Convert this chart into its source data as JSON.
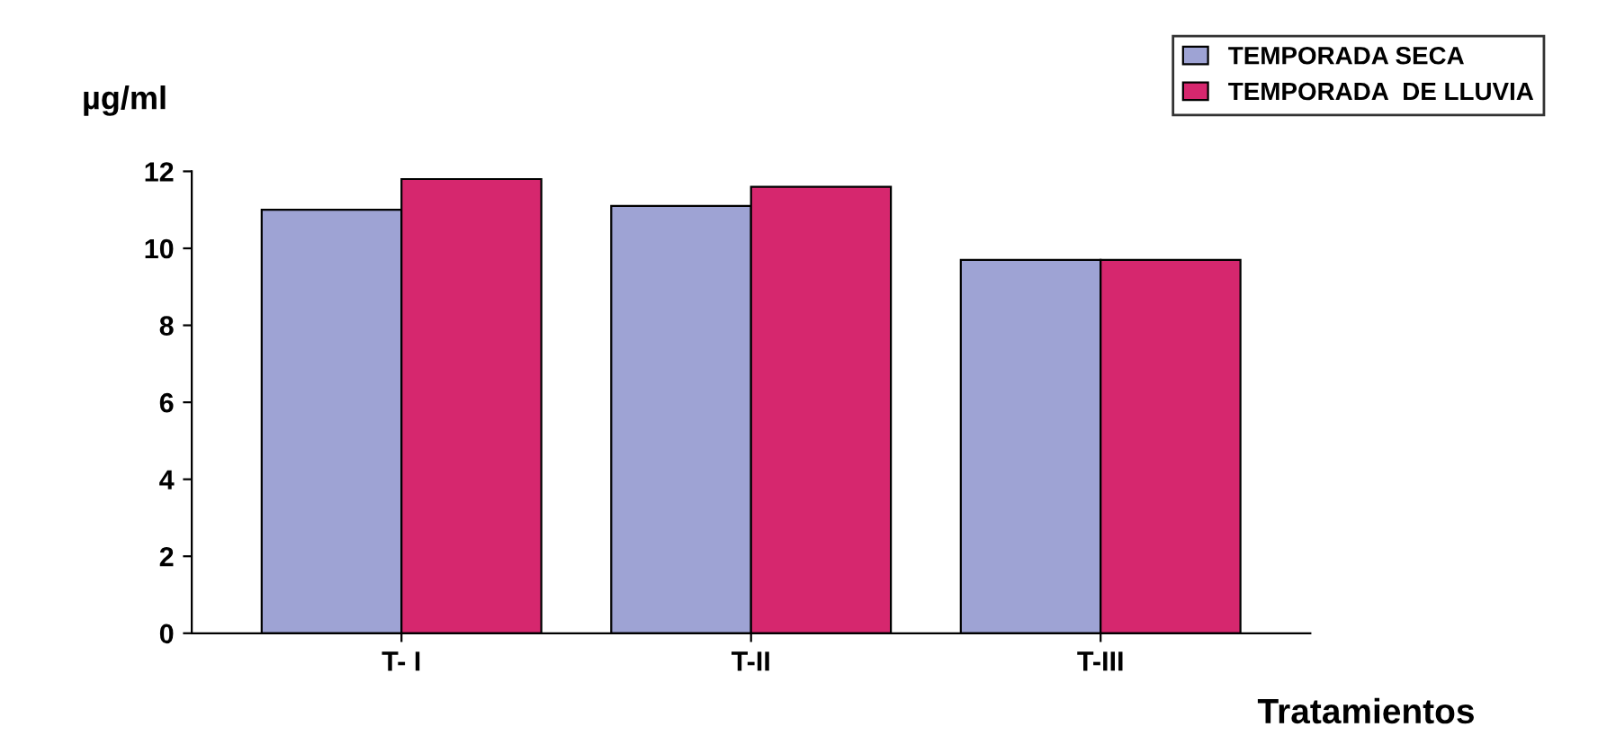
{
  "chart_data": {
    "type": "bar",
    "xlabel": "Tratamientos",
    "ylabel": "µg/ml",
    "categories": [
      "T- I",
      "T-II",
      "T-III"
    ],
    "series": [
      {
        "name": "TEMPORADA SECA",
        "color": "#9ea3d4",
        "values": [
          11.0,
          11.1,
          9.7
        ]
      },
      {
        "name": "TEMPORADA  DE LLUVIA",
        "color": "#d6276e",
        "values": [
          11.8,
          11.6,
          9.7
        ]
      }
    ],
    "ylim": [
      0,
      12
    ],
    "yticks": [
      0,
      2,
      4,
      6,
      8,
      10,
      12
    ],
    "grid": false,
    "legend": "top right"
  }
}
